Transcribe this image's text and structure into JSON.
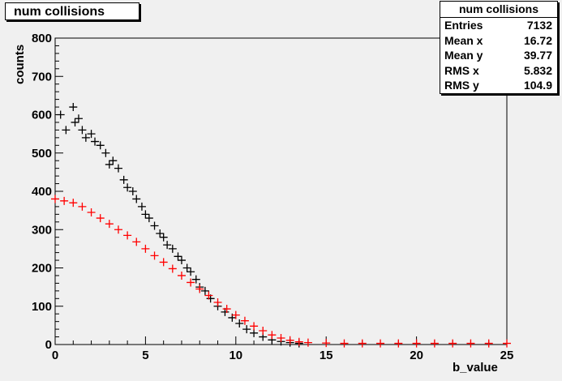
{
  "chart_data": {
    "type": "scatter",
    "title": "num collisions",
    "xlabel": "b_value",
    "ylabel": "counts",
    "xlim": [
      0,
      25
    ],
    "ylim": [
      0,
      800
    ],
    "x_ticks": [
      0,
      5,
      10,
      15,
      20,
      25
    ],
    "y_ticks": [
      0,
      100,
      200,
      300,
      400,
      500,
      600,
      700,
      800
    ],
    "grid": false,
    "marker": "+",
    "series": [
      {
        "color": "#000000",
        "x": [
          0.3,
          0.6,
          1.0,
          1.1,
          1.3,
          1.5,
          1.7,
          2.0,
          2.2,
          2.5,
          2.8,
          3.0,
          3.2,
          3.5,
          3.8,
          4.0,
          4.3,
          4.5,
          4.8,
          5.0,
          5.2,
          5.5,
          5.8,
          6.0,
          6.2,
          6.5,
          6.8,
          7.0,
          7.3,
          7.5,
          7.8,
          8.0,
          8.3,
          8.6,
          9.0,
          9.4,
          9.8,
          10.2,
          10.6,
          11.0,
          11.5,
          12.0,
          12.5,
          13.0,
          13.5
        ],
        "y": [
          600,
          560,
          620,
          580,
          590,
          560,
          540,
          550,
          530,
          520,
          500,
          470,
          480,
          460,
          430,
          410,
          400,
          380,
          360,
          340,
          330,
          310,
          290,
          280,
          260,
          250,
          230,
          220,
          200,
          190,
          170,
          150,
          140,
          120,
          100,
          85,
          70,
          55,
          40,
          30,
          20,
          12,
          8,
          5,
          3
        ]
      },
      {
        "color": "#ff0000",
        "x": [
          0.0,
          0.5,
          1.0,
          1.5,
          2.0,
          2.5,
          3.0,
          3.5,
          4.0,
          4.5,
          5.0,
          5.5,
          6.0,
          6.5,
          7.0,
          7.5,
          8.0,
          8.5,
          9.0,
          9.5,
          10.0,
          10.5,
          11.0,
          11.5,
          12.0,
          12.5,
          13.0,
          13.5,
          14.0,
          15.0,
          16.0,
          17.0,
          18.0,
          19.0,
          20.0,
          21.0,
          22.0,
          23.0,
          24.0,
          25.0
        ],
        "y": [
          380,
          375,
          370,
          360,
          345,
          330,
          315,
          300,
          285,
          268,
          250,
          232,
          215,
          198,
          180,
          162,
          145,
          128,
          110,
          93,
          77,
          62,
          48,
          36,
          25,
          17,
          11,
          7,
          5,
          4,
          3,
          3,
          3,
          3,
          3,
          3,
          3,
          3,
          3,
          3
        ]
      }
    ]
  },
  "stats": {
    "title": "num collisions",
    "rows": [
      {
        "label": "Entries",
        "value": "7132"
      },
      {
        "label": "Mean x",
        "value": "16.72"
      },
      {
        "label": "Mean y",
        "value": "39.77"
      },
      {
        "label": "RMS x",
        "value": "5.832"
      },
      {
        "label": "RMS y",
        "value": "104.9"
      }
    ]
  }
}
